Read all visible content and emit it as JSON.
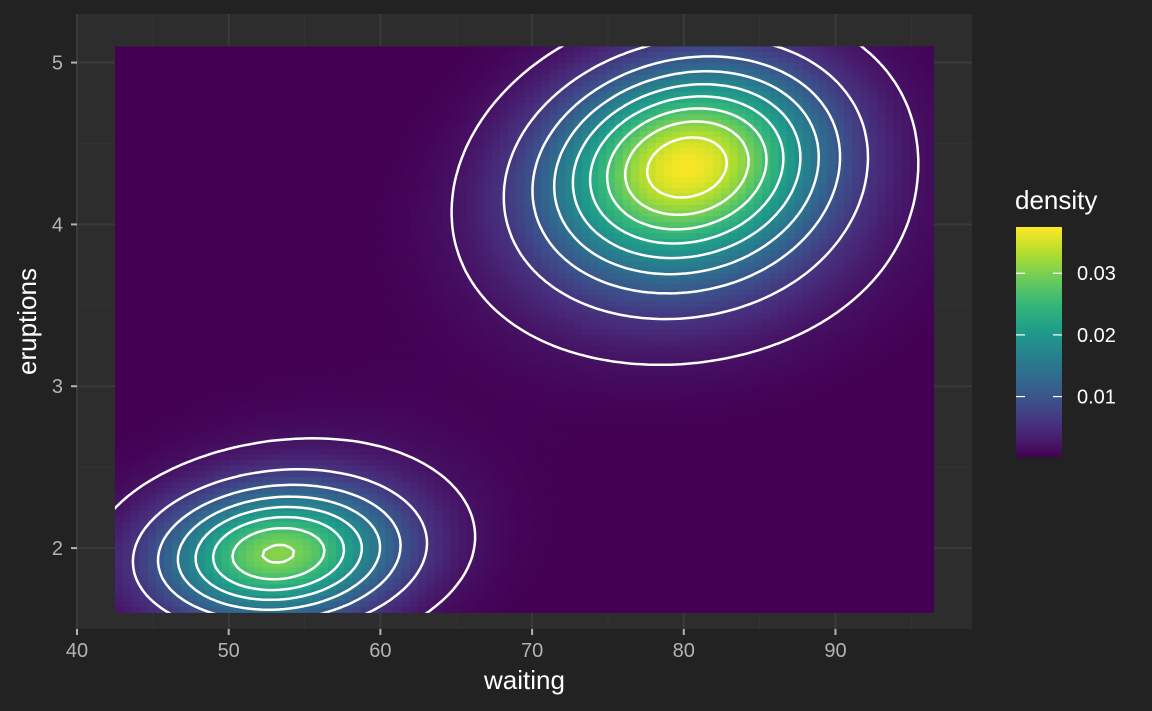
{
  "colors": {
    "background": "#222222",
    "panel": "#2d2d2d",
    "grid_major": "#3a3a3a",
    "grid_minor": "#333333",
    "contour": "#ffffff",
    "tick_text": "#b3b3b3",
    "palette": "viridis"
  },
  "chart_data": {
    "type": "heatmap",
    "xlabel": "waiting",
    "ylabel": "eruptions",
    "xlim": [
      40,
      99
    ],
    "ylim": [
      1.5,
      5.3
    ],
    "x_ticks": [
      40,
      50,
      60,
      70,
      80,
      90
    ],
    "y_ticks": [
      2,
      3,
      4,
      5
    ],
    "x_tick_labels": [
      "40",
      "50",
      "60",
      "70",
      "80",
      "90"
    ],
    "y_tick_labels": [
      "2",
      "3",
      "4",
      "5"
    ],
    "raster_extent": {
      "x": [
        42.5,
        96.5
      ],
      "y": [
        1.6,
        5.1
      ]
    },
    "grid": true,
    "contours": true,
    "density_peaks": [
      {
        "waiting": 80.3,
        "eruptions": 4.4,
        "density": 0.037
      },
      {
        "waiting": 53.0,
        "eruptions": 1.95,
        "density": 0.022
      }
    ],
    "legend": {
      "title": "density",
      "ticks": [
        0.01,
        0.02,
        0.03
      ],
      "tick_labels": [
        "0.01",
        "0.02",
        "0.03"
      ],
      "range": [
        0.0002,
        0.0375
      ],
      "placement": "right"
    }
  }
}
